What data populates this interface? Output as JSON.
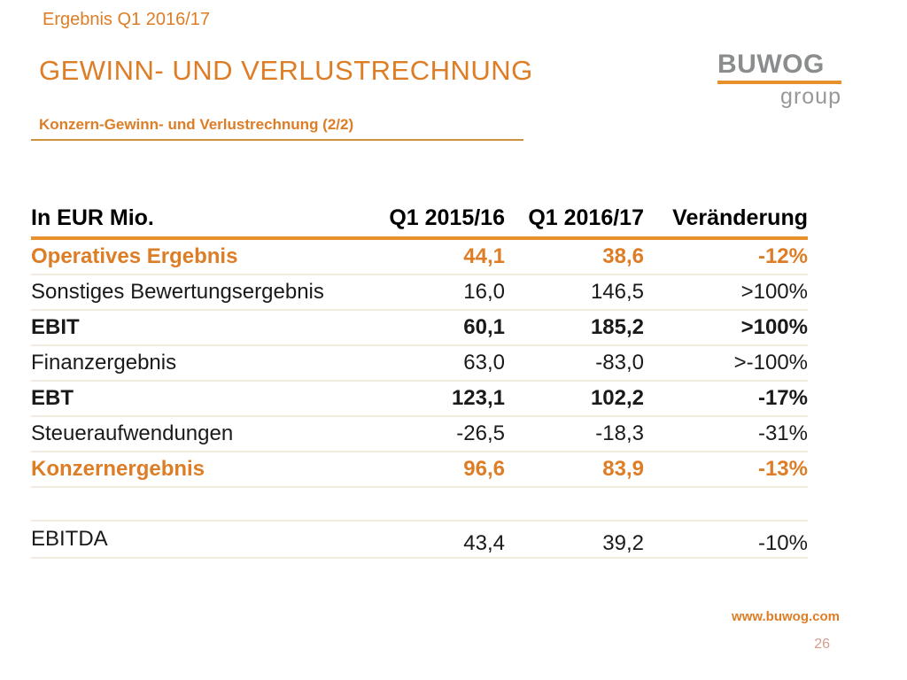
{
  "slide": {
    "kicker": "Ergebnis Q1 2016/17",
    "title": "GEWINN- UND VERLUSTRECHNUNG",
    "subtitle": "Konzern-Gewinn- und Verlustrechnung (2/2)",
    "logo": {
      "wordmark": "BUWOG",
      "tagline": "group"
    },
    "footer": {
      "url": "www.buwog.com",
      "page": "26"
    },
    "colors": {
      "accent": "#DD7D26",
      "accent_rule": "#E8912C",
      "logo_gray": "#8A8C8E",
      "row_separator": "#F2ECDF",
      "page_number": "#D49B8B"
    }
  },
  "table": {
    "headers": [
      "In EUR Mio.",
      "Q1 2015/16",
      "Q1 2016/17",
      "Veränderung"
    ],
    "rows": [
      {
        "label": "Operatives Ergebnis",
        "q1_2015_16": "44,1",
        "q1_2016_17": "38,6",
        "change": "-12%"
      },
      {
        "label": "Sonstiges Bewertungsergebnis",
        "q1_2015_16": "16,0",
        "q1_2016_17": "146,5",
        "change": ">100%"
      },
      {
        "label": "EBIT",
        "q1_2015_16": "60,1",
        "q1_2016_17": "185,2",
        "change": ">100%"
      },
      {
        "label": "Finanzergebnis",
        "q1_2015_16": "63,0",
        "q1_2016_17": "-83,0",
        "change": ">-100%"
      },
      {
        "label": "EBT",
        "q1_2015_16": "123,1",
        "q1_2016_17": "102,2",
        "change": "-17%"
      },
      {
        "label": "Steueraufwendungen",
        "q1_2015_16": "-26,5",
        "q1_2016_17": "-18,3",
        "change": "-31%"
      },
      {
        "label": "Konzernergebnis",
        "q1_2015_16": "96,6",
        "q1_2016_17": "83,9",
        "change": "-13%"
      }
    ],
    "supplemental_row": {
      "label": "EBITDA",
      "q1_2015_16": "43,4",
      "q1_2016_17": "39,2",
      "change": "-10%"
    }
  }
}
